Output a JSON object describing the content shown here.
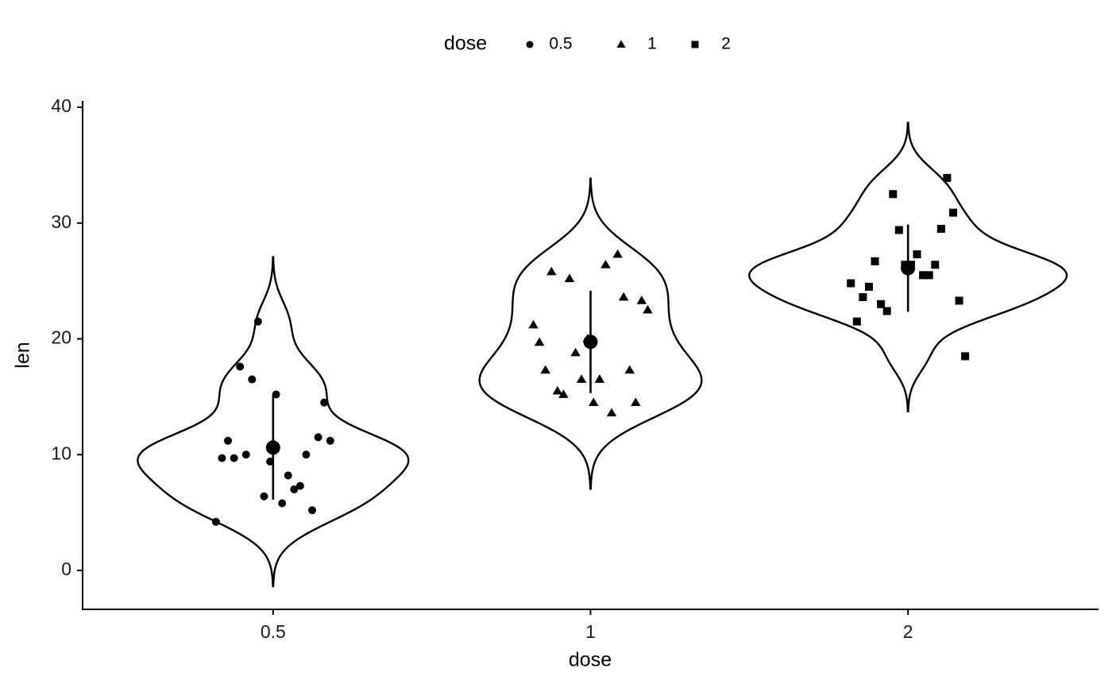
{
  "chart_data": {
    "type": "violin",
    "x_label": "dose",
    "y_label": "len",
    "legend_title": "dose",
    "categories": [
      "0.5",
      "1",
      "2"
    ],
    "shapes": [
      "circle",
      "triangle",
      "square"
    ],
    "color": "#000000",
    "series": [
      {
        "name": "0.5",
        "values": [
          4.2,
          11.5,
          7.3,
          5.8,
          6.4,
          10,
          11.2,
          11.2,
          5.2,
          7,
          15.2,
          21.5,
          17.6,
          9.7,
          14.5,
          10,
          8.2,
          9.4,
          16.5,
          9.7
        ]
      },
      {
        "name": "1",
        "values": [
          16.5,
          16.5,
          15.2,
          17.3,
          22.5,
          17.3,
          13.6,
          14.5,
          18.8,
          15.5,
          19.7,
          23.3,
          23.6,
          26.4,
          20,
          25.2,
          25.8,
          21.2,
          14.5,
          27.3
        ]
      },
      {
        "name": "2",
        "values": [
          23.6,
          18.5,
          33.9,
          25.5,
          26.4,
          32.5,
          26.7,
          21.5,
          23.3,
          29.5,
          25.5,
          26.4,
          22.4,
          24.5,
          24.8,
          30.9,
          26.4,
          27.3,
          29.4,
          23
        ]
      }
    ],
    "means": [
      10.61,
      19.74,
      26.1
    ],
    "sds": [
      4.5,
      4.42,
      3.77
    ],
    "ylim": [
      -3.36,
      40.55
    ],
    "yticks": [
      0,
      10,
      20,
      30,
      40
    ],
    "grid": false
  }
}
